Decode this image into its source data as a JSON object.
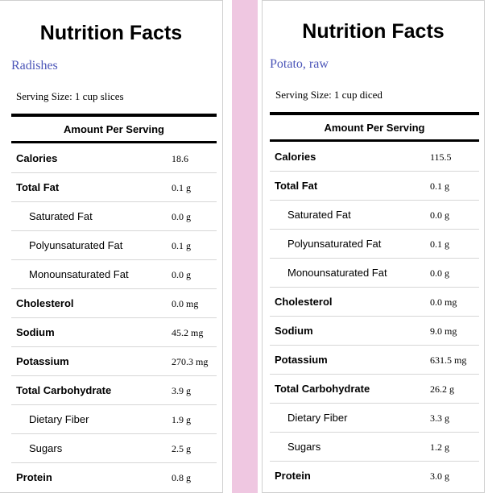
{
  "colors": {
    "divider": "#efc7e1",
    "food_name": "#4b55b8",
    "rule": "#000000"
  },
  "panels": [
    {
      "title": "Nutrition Facts",
      "food_name": "Radishes",
      "serving_size": "Serving Size: 1 cup slices",
      "amount_header": "Amount Per Serving",
      "rows": [
        {
          "name": "Calories",
          "value": "18.6",
          "level": "main"
        },
        {
          "name": "Total Fat",
          "value": "0.1 g",
          "level": "main"
        },
        {
          "name": "Saturated Fat",
          "value": "0.0 g",
          "level": "sub"
        },
        {
          "name": "Polyunsaturated Fat",
          "value": "0.1 g",
          "level": "sub"
        },
        {
          "name": "Monounsaturated Fat",
          "value": "0.0 g",
          "level": "sub"
        },
        {
          "name": "Cholesterol",
          "value": "0.0 mg",
          "level": "main"
        },
        {
          "name": "Sodium",
          "value": "45.2 mg",
          "level": "main"
        },
        {
          "name": "Potassium",
          "value": "270.3 mg",
          "level": "main"
        },
        {
          "name": "Total Carbohydrate",
          "value": "3.9 g",
          "level": "main"
        },
        {
          "name": "Dietary Fiber",
          "value": "1.9 g",
          "level": "sub"
        },
        {
          "name": "Sugars",
          "value": "2.5 g",
          "level": "sub"
        },
        {
          "name": "Protein",
          "value": "0.8 g",
          "level": "main"
        }
      ]
    },
    {
      "title": "Nutrition Facts",
      "food_name": "Potato, raw",
      "serving_size": "Serving Size: 1 cup diced",
      "amount_header": "Amount Per Serving",
      "rows": [
        {
          "name": "Calories",
          "value": "115.5",
          "level": "main"
        },
        {
          "name": "Total Fat",
          "value": "0.1 g",
          "level": "main"
        },
        {
          "name": "Saturated Fat",
          "value": "0.0 g",
          "level": "sub"
        },
        {
          "name": "Polyunsaturated Fat",
          "value": "0.1 g",
          "level": "sub"
        },
        {
          "name": "Monounsaturated Fat",
          "value": "0.0 g",
          "level": "sub"
        },
        {
          "name": "Cholesterol",
          "value": "0.0 mg",
          "level": "main"
        },
        {
          "name": "Sodium",
          "value": "9.0 mg",
          "level": "main"
        },
        {
          "name": "Potassium",
          "value": "631.5 mg",
          "level": "main"
        },
        {
          "name": "Total Carbohydrate",
          "value": "26.2 g",
          "level": "main"
        },
        {
          "name": "Dietary Fiber",
          "value": "3.3 g",
          "level": "sub"
        },
        {
          "name": "Sugars",
          "value": "1.2 g",
          "level": "sub"
        },
        {
          "name": "Protein",
          "value": "3.0 g",
          "level": "main"
        }
      ]
    }
  ]
}
